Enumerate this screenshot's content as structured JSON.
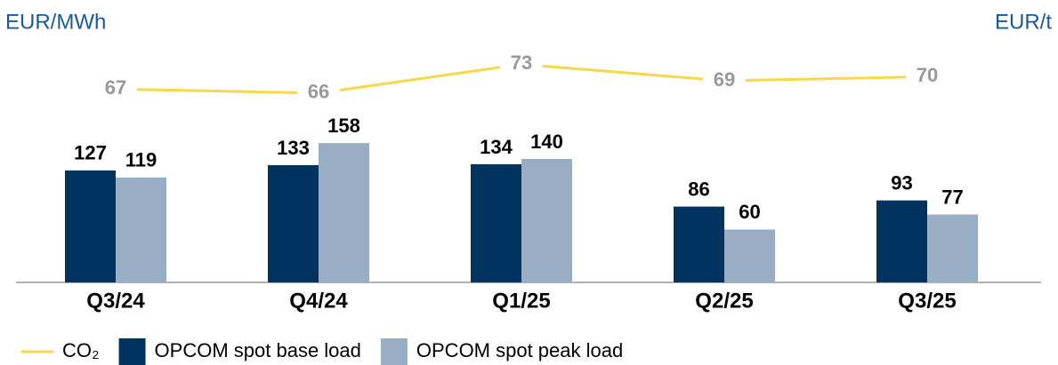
{
  "chart_data": {
    "type": "bar_line",
    "y_label": "EUR/MWh",
    "y2_label": "EUR/t",
    "categories": [
      "Q3/24",
      "Q4/24",
      "Q1/25",
      "Q2/25",
      "Q3/25"
    ],
    "ylim": [
      0,
      280
    ],
    "y2lim": [
      20,
      80
    ],
    "series": [
      {
        "name": "CO₂",
        "type": "line",
        "axis": "y2",
        "color": "#f7d84a",
        "values": [
          67,
          66,
          73,
          69,
          70
        ]
      },
      {
        "name": "OPCOM spot base load",
        "type": "bar",
        "color": "#00335f",
        "values": [
          127,
          133,
          134,
          86,
          93
        ]
      },
      {
        "name": "OPCOM spot peak load",
        "type": "bar",
        "color": "#99adc4",
        "values": [
          119,
          158,
          140,
          60,
          77
        ]
      }
    ]
  }
}
